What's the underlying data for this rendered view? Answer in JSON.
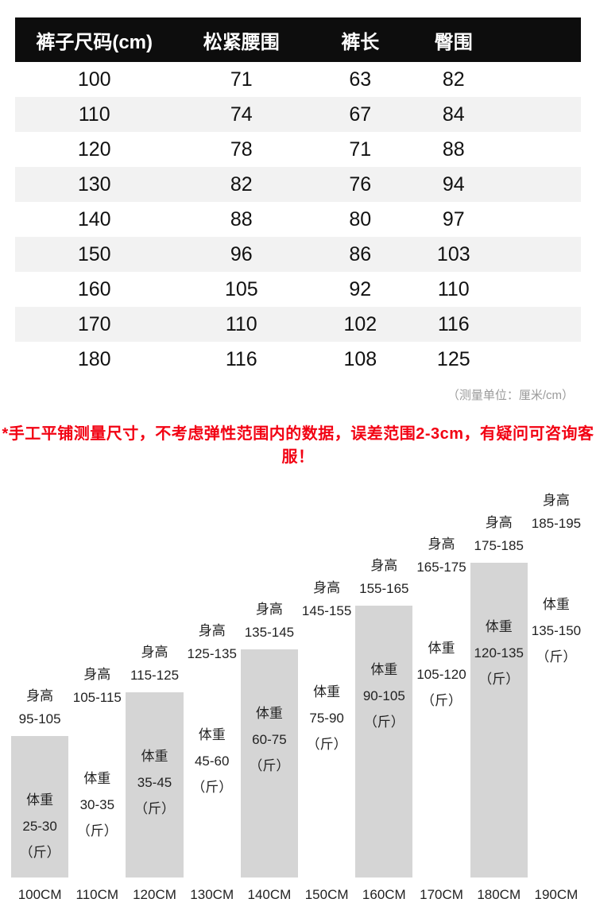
{
  "chart_data": [
    {
      "type": "table",
      "title": "裤子尺码表",
      "columns": [
        "裤子尺码(cm)",
        "松紧腰围",
        "裤长",
        "臀围"
      ],
      "rows": [
        [
          "100",
          "71",
          "63",
          "82"
        ],
        [
          "110",
          "74",
          "67",
          "84"
        ],
        [
          "120",
          "78",
          "71",
          "88"
        ],
        [
          "130",
          "82",
          "76",
          "94"
        ],
        [
          "140",
          "88",
          "80",
          "97"
        ],
        [
          "150",
          "96",
          "86",
          "103"
        ],
        [
          "160",
          "105",
          "92",
          "110"
        ],
        [
          "170",
          "110",
          "102",
          "116"
        ],
        [
          "180",
          "116",
          "108",
          "125"
        ]
      ]
    },
    {
      "type": "bar",
      "categories": [
        "100CM",
        "110CM",
        "120CM",
        "130CM",
        "140CM",
        "150CM",
        "160CM",
        "170CM",
        "180CM",
        "190CM"
      ],
      "bar_label_height": "身高",
      "bar_label_weight": "体重",
      "unit_suffix": "（斤）",
      "series": [
        {
          "name": "身高",
          "values": [
            "95-105",
            "105-115",
            "115-125",
            "125-135",
            "135-145",
            "145-155",
            "155-165",
            "165-175",
            "175-185",
            "185-195"
          ]
        },
        {
          "name": "体重",
          "values": [
            "25-30",
            "30-35",
            "35-45",
            "45-60",
            "60-75",
            "75-90",
            "90-105",
            "105-120",
            "120-135",
            "135-150"
          ]
        }
      ],
      "layout": {
        "bar_fill_alternating": [
          "#d5d5d5",
          "#ffffff"
        ],
        "orientation": "staircase-ascending"
      }
    }
  ],
  "unit_note": "（测量单位：厘米/cm）",
  "warning": "*手工平铺测量尺寸，不考虑弹性范围内的数据，误差范围2-3cm，有疑问可咨询客服！"
}
